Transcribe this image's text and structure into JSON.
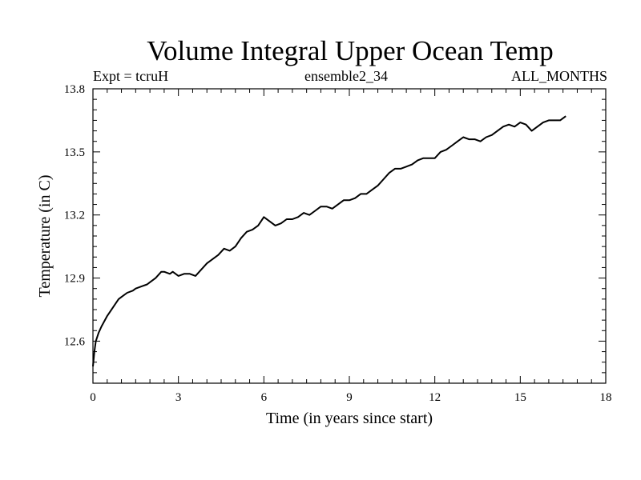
{
  "chart_data": {
    "type": "line",
    "title": "Volume Integral Upper Ocean Temp",
    "subtitle_left": "Expt = tcruH",
    "subtitle_center": "ensemble2_34",
    "subtitle_right": "ALL_MONTHS",
    "xlabel": "Time (in years since start)",
    "ylabel": "Temperature (in C)",
    "xlim": [
      0,
      18
    ],
    "ylim": [
      12.4,
      13.8
    ],
    "x_ticks": [
      0,
      3,
      6,
      9,
      12,
      15,
      18
    ],
    "x_tick_labels": [
      "0",
      "3",
      "6",
      "9",
      "12",
      "15",
      "18"
    ],
    "y_ticks": [
      12.6,
      12.9,
      13.2,
      13.5,
      13.8
    ],
    "y_tick_labels": [
      "12.6",
      "12.9",
      "13.2",
      "13.5",
      "13.8"
    ],
    "grid": false,
    "series": [
      {
        "name": "Volume Integral Upper Ocean Temp",
        "color": "#000000",
        "x": [
          0.0,
          0.05,
          0.1,
          0.2,
          0.3,
          0.5,
          0.7,
          0.9,
          1.0,
          1.2,
          1.4,
          1.5,
          1.7,
          1.9,
          2.0,
          2.2,
          2.4,
          2.5,
          2.7,
          2.8,
          3.0,
          3.2,
          3.4,
          3.6,
          3.8,
          4.0,
          4.2,
          4.4,
          4.6,
          4.8,
          5.0,
          5.2,
          5.4,
          5.6,
          5.8,
          6.0,
          6.2,
          6.4,
          6.6,
          6.8,
          7.0,
          7.2,
          7.4,
          7.6,
          7.8,
          8.0,
          8.2,
          8.4,
          8.6,
          8.8,
          9.0,
          9.2,
          9.4,
          9.6,
          9.8,
          10.0,
          10.2,
          10.4,
          10.6,
          10.8,
          11.0,
          11.2,
          11.4,
          11.6,
          11.8,
          12.0,
          12.2,
          12.4,
          12.6,
          12.8,
          13.0,
          13.2,
          13.4,
          13.6,
          13.8,
          14.0,
          14.2,
          14.4,
          14.6,
          14.8,
          15.0,
          15.2,
          15.4,
          15.6,
          15.8,
          16.0,
          16.2,
          16.4,
          16.6
        ],
        "y": [
          12.48,
          12.55,
          12.6,
          12.64,
          12.67,
          12.72,
          12.76,
          12.8,
          12.81,
          12.83,
          12.84,
          12.85,
          12.86,
          12.87,
          12.88,
          12.9,
          12.93,
          12.93,
          12.92,
          12.93,
          12.91,
          12.92,
          12.92,
          12.91,
          12.94,
          12.97,
          12.99,
          13.01,
          13.04,
          13.03,
          13.05,
          13.09,
          13.12,
          13.13,
          13.15,
          13.19,
          13.17,
          13.15,
          13.16,
          13.18,
          13.18,
          13.19,
          13.21,
          13.2,
          13.22,
          13.24,
          13.24,
          13.23,
          13.25,
          13.27,
          13.27,
          13.28,
          13.3,
          13.3,
          13.32,
          13.34,
          13.37,
          13.4,
          13.42,
          13.42,
          13.43,
          13.44,
          13.46,
          13.47,
          13.47,
          13.47,
          13.5,
          13.51,
          13.53,
          13.55,
          13.57,
          13.56,
          13.56,
          13.55,
          13.57,
          13.58,
          13.6,
          13.62,
          13.63,
          13.62,
          13.64,
          13.63,
          13.6,
          13.62,
          13.64,
          13.65,
          13.65,
          13.65,
          13.67
        ]
      }
    ]
  }
}
